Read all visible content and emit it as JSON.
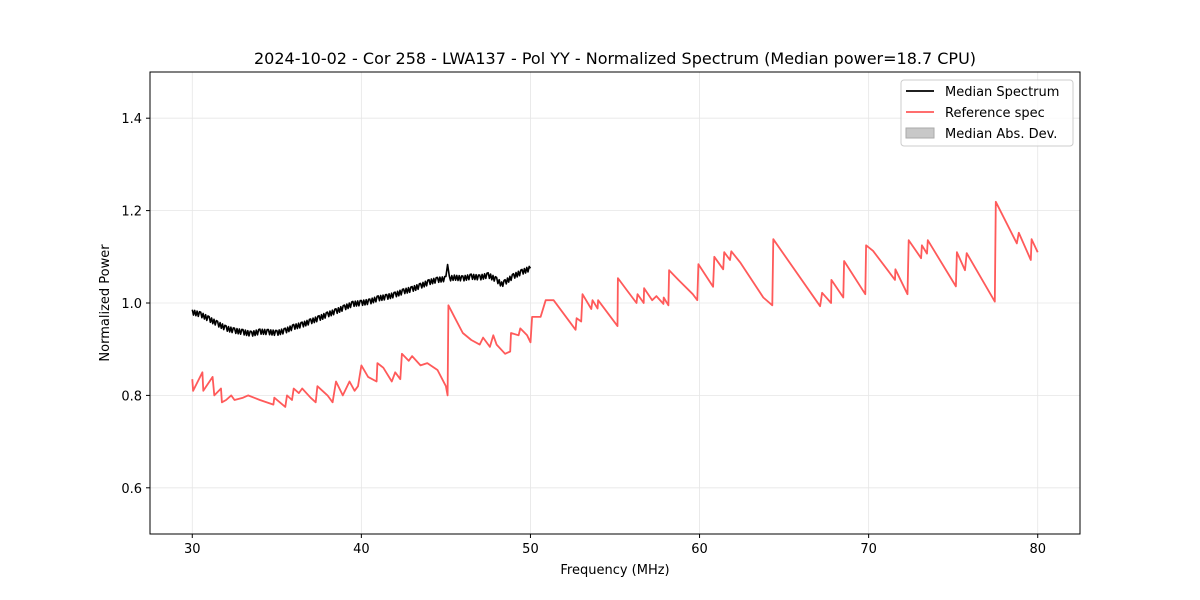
{
  "chart_data": {
    "type": "line",
    "title": "2024-10-02 - Cor 258 - LWA137 - Pol YY - Normalized Spectrum (Median power=18.7 CPU)",
    "xlabel": "Frequency (MHz)",
    "ylabel": "Normalized Power",
    "xlim": [
      27.5,
      82.5
    ],
    "ylim": [
      0.5,
      1.5
    ],
    "xticks": [
      30,
      40,
      50,
      60,
      70,
      80
    ],
    "xtick_labels": [
      "30",
      "40",
      "50",
      "60",
      "70",
      "80"
    ],
    "yticks": [
      0.6,
      0.8,
      1.0,
      1.2,
      1.4
    ],
    "ytick_labels": [
      "0.6",
      "0.8",
      "1.0",
      "1.2",
      "1.4"
    ],
    "grid": true,
    "legend_placement": "top-right",
    "legend": [
      {
        "label": "Median Spectrum",
        "kind": "line",
        "color": "#000000"
      },
      {
        "label": "Reference spec",
        "kind": "line",
        "color": "#ff5a5a"
      },
      {
        "label": "Median Abs. Dev.",
        "kind": "patch",
        "color": "#c8c8c8"
      }
    ],
    "series": [
      {
        "name": "Median Spectrum",
        "color": "#000000",
        "x": [
          30,
          30.5,
          31,
          31.5,
          32,
          32.5,
          33,
          33.5,
          34,
          34.5,
          35,
          35.5,
          36,
          36.5,
          37,
          37.5,
          38,
          38.5,
          39,
          39.5,
          40,
          40.5,
          41,
          41.5,
          42,
          42.5,
          43,
          43.5,
          44,
          44.5,
          45,
          45.1,
          45.2,
          45.5,
          46,
          46.5,
          47,
          47.5,
          48,
          48.3,
          48.5,
          49,
          49.5,
          50
        ],
        "y": [
          0.98,
          0.975,
          0.965,
          0.955,
          0.945,
          0.94,
          0.937,
          0.933,
          0.938,
          0.937,
          0.935,
          0.94,
          0.948,
          0.953,
          0.96,
          0.967,
          0.975,
          0.982,
          0.99,
          0.998,
          1.0,
          1.003,
          1.01,
          1.013,
          1.018,
          1.025,
          1.03,
          1.037,
          1.045,
          1.05,
          1.052,
          1.078,
          1.053,
          1.055,
          1.053,
          1.057,
          1.055,
          1.06,
          1.05,
          1.04,
          1.045,
          1.058,
          1.067,
          1.075
        ]
      },
      {
        "name": "Reference spec",
        "color": "#ff5a5a",
        "x": [
          30.0,
          30.05,
          30.6,
          30.65,
          31.2,
          31.3,
          31.7,
          31.75,
          32.0,
          32.3,
          32.5,
          33.0,
          33.3,
          34.0,
          34.8,
          34.85,
          35.5,
          35.6,
          35.9,
          36.0,
          36.3,
          36.5,
          37.0,
          37.3,
          37.4,
          38.0,
          38.3,
          38.5,
          38.9,
          39.3,
          39.6,
          39.8,
          40.0,
          40.4,
          40.9,
          40.95,
          41.3,
          41.8,
          42.0,
          42.3,
          42.4,
          42.8,
          43.0,
          43.5,
          43.9,
          44.5,
          45.0,
          45.1,
          45.15,
          45.5,
          46.0,
          46.5,
          47.0,
          47.2,
          47.6,
          47.8,
          48.0,
          48.5,
          48.8,
          48.85,
          49.3,
          49.4,
          49.8,
          50.0,
          50.1,
          50.6,
          50.9,
          51.37,
          52.67,
          52.73,
          53.0,
          53.08,
          53.6,
          53.67,
          53.97,
          54.0,
          55.15,
          55.17,
          55.7,
          56.27,
          56.33,
          56.7,
          56.72,
          57.2,
          57.45,
          57.86,
          57.88,
          58.16,
          58.2,
          58.75,
          59.6,
          59.87,
          59.93,
          60.8,
          60.87,
          61.4,
          61.46,
          61.8,
          61.88,
          62.4,
          63.77,
          64.3,
          64.36,
          67.13,
          67.25,
          67.78,
          67.8,
          68.5,
          68.55,
          69.8,
          69.85,
          70.26,
          71.56,
          71.58,
          72.3,
          72.37,
          73.1,
          73.15,
          73.45,
          73.5,
          75.16,
          75.22,
          75.7,
          75.8,
          77.46,
          77.52,
          78.76,
          78.88,
          79.59,
          79.64,
          80.0
        ],
        "y": [
          0.835,
          0.81,
          0.85,
          0.81,
          0.84,
          0.8,
          0.815,
          0.785,
          0.79,
          0.8,
          0.79,
          0.795,
          0.8,
          0.79,
          0.78,
          0.795,
          0.775,
          0.8,
          0.79,
          0.815,
          0.805,
          0.815,
          0.795,
          0.785,
          0.82,
          0.8,
          0.785,
          0.83,
          0.8,
          0.83,
          0.81,
          0.82,
          0.865,
          0.84,
          0.83,
          0.87,
          0.86,
          0.83,
          0.85,
          0.835,
          0.89,
          0.875,
          0.885,
          0.865,
          0.87,
          0.855,
          0.82,
          0.8,
          0.995,
          0.97,
          0.935,
          0.92,
          0.91,
          0.925,
          0.905,
          0.93,
          0.91,
          0.89,
          0.895,
          0.935,
          0.93,
          0.945,
          0.93,
          0.915,
          0.97,
          0.97,
          1.006,
          1.006,
          0.942,
          0.967,
          0.96,
          1.019,
          0.987,
          1.006,
          0.988,
          1.006,
          0.95,
          1.054,
          1.028,
          1.0,
          1.019,
          1.0,
          1.032,
          1.006,
          1.015,
          0.998,
          1.012,
          0.995,
          1.071,
          1.05,
          1.019,
          1.006,
          1.084,
          1.035,
          1.1,
          1.073,
          1.11,
          1.093,
          1.112,
          1.088,
          1.012,
          0.995,
          1.138,
          0.993,
          1.022,
          1.0,
          1.05,
          1.012,
          1.091,
          1.019,
          1.125,
          1.113,
          1.05,
          1.073,
          1.019,
          1.136,
          1.097,
          1.125,
          1.107,
          1.136,
          1.036,
          1.11,
          1.071,
          1.108,
          1.003,
          1.219,
          1.129,
          1.152,
          1.093,
          1.138,
          1.11
        ]
      }
    ]
  }
}
